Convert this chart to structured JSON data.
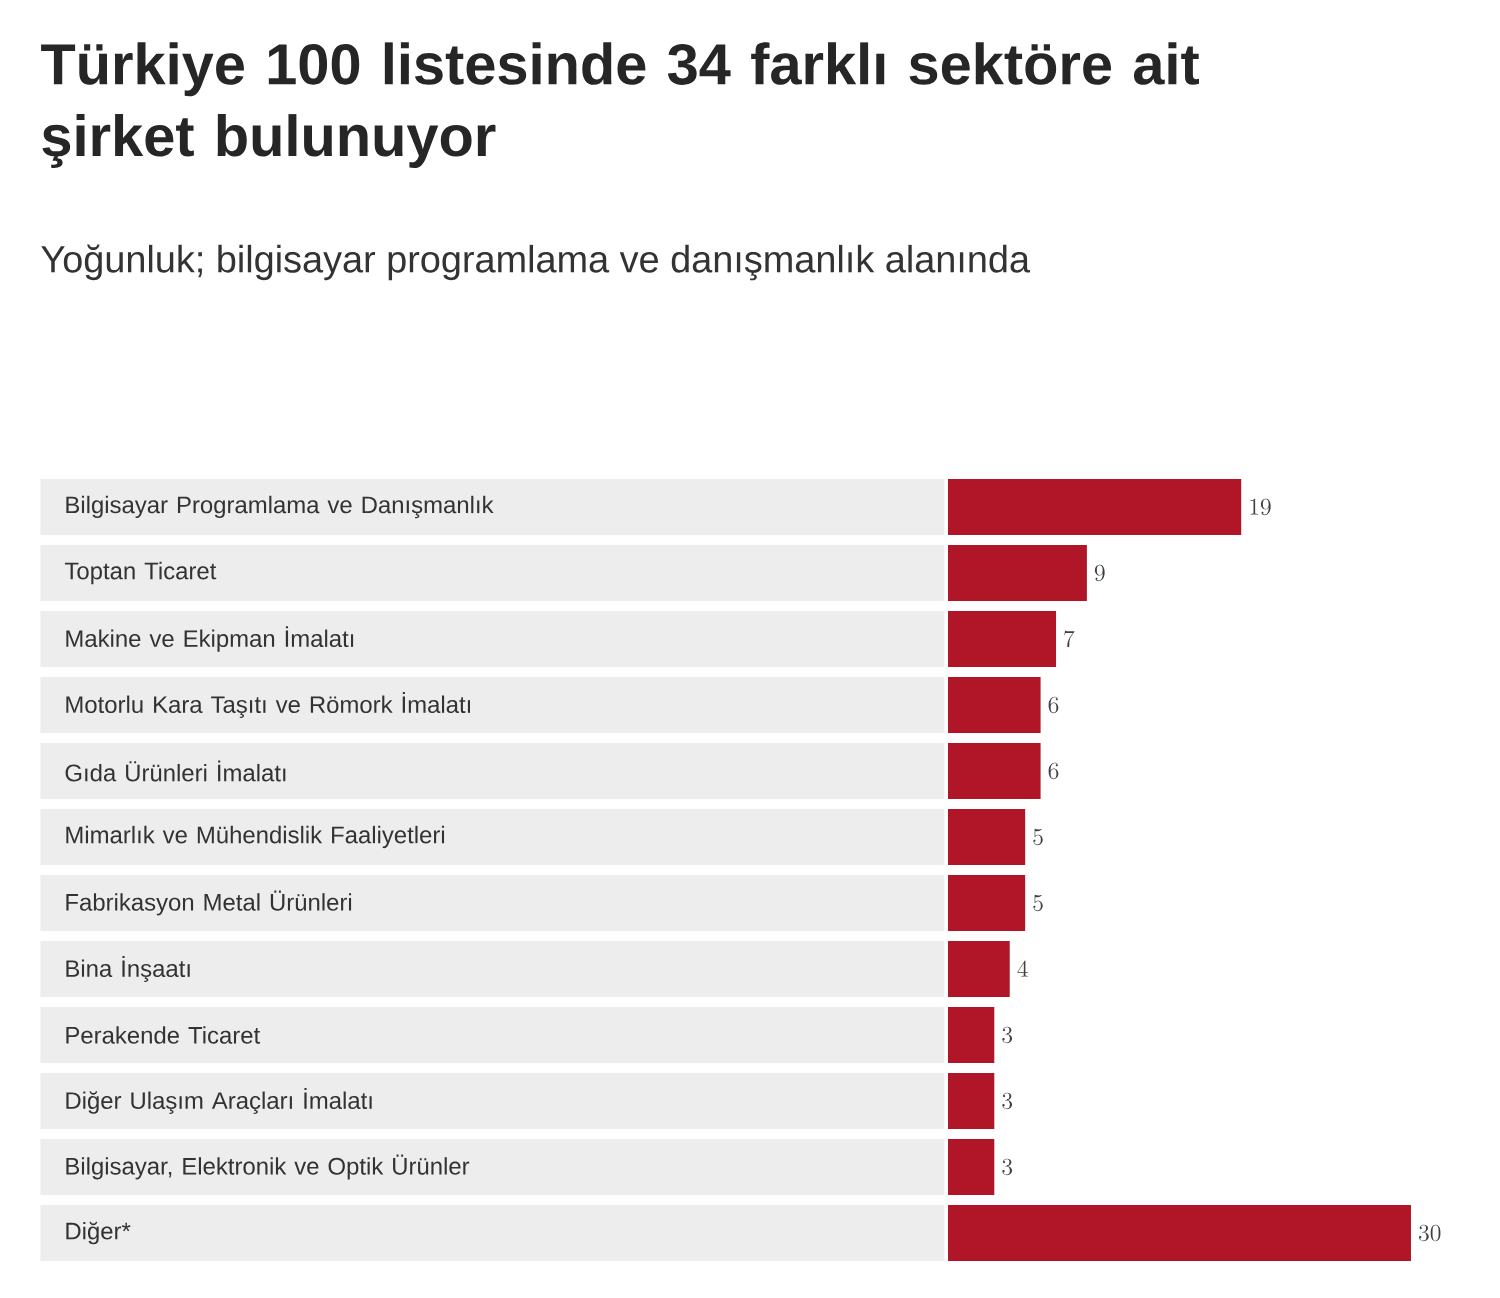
{
  "chart_data": {
    "type": "bar",
    "orientation": "horizontal",
    "title": "Türkiye 100 listesinde 34 farklı sektöre ait şirket bulunuyor",
    "subtitle": "Yoğunluk; bilgisayar programlama ve danışmanlık alanında",
    "categories": [
      "Bilgisayar Programlama ve Danışmanlık",
      "Toptan Ticaret",
      "Makine ve Ekipman İmalatı",
      "Motorlu Kara Taşıtı ve Römork İmalatı",
      "Gıda Ürünleri İmalatı",
      "Mimarlık ve Mühendislik Faaliyetleri",
      "Fabrikasyon Metal Ürünleri",
      "Bina İnşaatı",
      "Perakende Ticaret",
      "Diğer Ulaşım Araçları İmalatı",
      "Bilgisayar, Elektronik ve Optik Ürünler",
      "Diğer*"
    ],
    "values": [
      19,
      9,
      7,
      6,
      6,
      5,
      5,
      4,
      3,
      3,
      3,
      30
    ],
    "color": "#b01627",
    "data_labels": true
  }
}
